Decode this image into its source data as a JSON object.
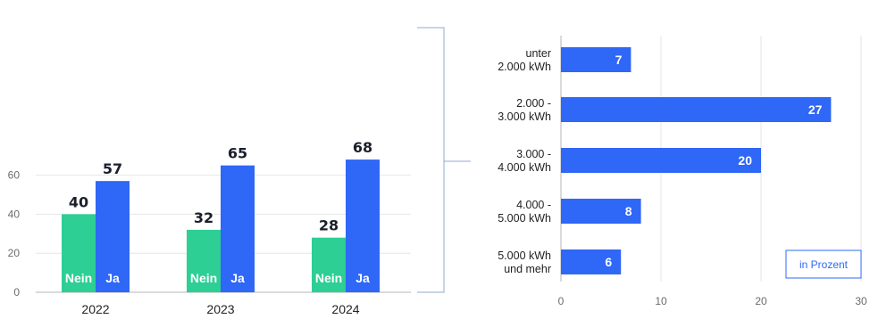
{
  "colors": {
    "nein": "#2dcf94",
    "ja": "#2f67f6",
    "grid": "#e6e6e6",
    "axis": "#b5b5b5",
    "bracket": "#8fa9d6"
  },
  "chart_data": [
    {
      "type": "bar",
      "categories": [
        "2022",
        "2023",
        "2024"
      ],
      "series": [
        {
          "name": "Nein",
          "values": [
            40,
            32,
            28
          ]
        },
        {
          "name": "Ja",
          "values": [
            57,
            65,
            68
          ]
        }
      ],
      "ylim": [
        0,
        68
      ],
      "yticks": [
        "0",
        "20",
        "40",
        "60"
      ],
      "grid": true,
      "series_labels_inside_bars": true
    },
    {
      "type": "bar",
      "orientation": "horizontal",
      "categories": [
        [
          "unter",
          "2.000 kWh"
        ],
        [
          "2.000 -",
          "3.000 kWh"
        ],
        [
          "3.000 -",
          "4.000 kWh"
        ],
        [
          "4.000 -",
          "5.000 kWh"
        ],
        [
          "5.000 kWh",
          "und mehr"
        ]
      ],
      "values": [
        7,
        27,
        20,
        8,
        6
      ],
      "xlim": [
        0,
        30
      ],
      "xticks": [
        "0",
        "10",
        "20",
        "30"
      ],
      "grid": true,
      "unit_note": "in Prozent",
      "unit_note_placement": "bottom-right"
    }
  ]
}
